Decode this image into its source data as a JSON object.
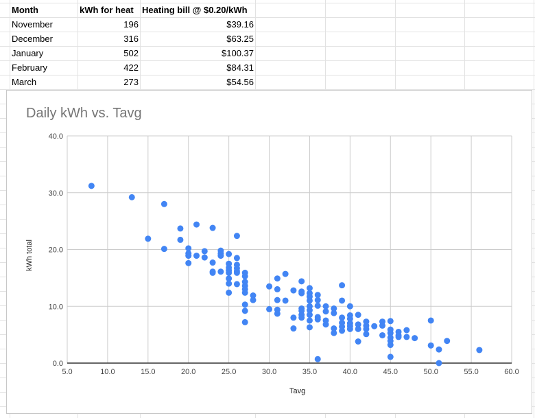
{
  "sheet": {
    "headers": [
      "Month",
      "kWh for heat",
      "Heating bill @ $0.20/kWh"
    ],
    "rows": [
      [
        "November",
        "196",
        "$39.16"
      ],
      [
        "December",
        "316",
        "$63.25"
      ],
      [
        "January",
        "502",
        "$100.37"
      ],
      [
        "February",
        "422",
        "$84.31"
      ],
      [
        "March",
        "273",
        "$54.56"
      ]
    ]
  },
  "chart_data": {
    "type": "scatter",
    "title": "Daily kWh vs. Tavg",
    "xlabel": "Tavg",
    "ylabel": "kWh total",
    "xlim": [
      5,
      60
    ],
    "ylim": [
      0,
      40
    ],
    "xticks": [
      "5.0",
      "10.0",
      "15.0",
      "20.0",
      "25.0",
      "30.0",
      "35.0",
      "40.0",
      "45.0",
      "50.0",
      "55.0",
      "60.0"
    ],
    "yticks": [
      "0.0",
      "10.0",
      "20.0",
      "30.0",
      "40.0"
    ],
    "grid": true,
    "color": "#4285f4",
    "points": [
      [
        8,
        31.2
      ],
      [
        13,
        29.2
      ],
      [
        15,
        21.9
      ],
      [
        17,
        28
      ],
      [
        17,
        20.1
      ],
      [
        19,
        23.7
      ],
      [
        19,
        21.7
      ],
      [
        20,
        20.2
      ],
      [
        20,
        19.3
      ],
      [
        20,
        18.9
      ],
      [
        20,
        17.6
      ],
      [
        21,
        24.4
      ],
      [
        21,
        18.9
      ],
      [
        22,
        19.7
      ],
      [
        22,
        18.6
      ],
      [
        23,
        23.8
      ],
      [
        23,
        17.7
      ],
      [
        23,
        16.1
      ],
      [
        23,
        15.9
      ],
      [
        24,
        19.8
      ],
      [
        24,
        19.3
      ],
      [
        24,
        18.9
      ],
      [
        24,
        16.1
      ],
      [
        25,
        19.2
      ],
      [
        25,
        17.5
      ],
      [
        25,
        16.8
      ],
      [
        25,
        16.3
      ],
      [
        25,
        15.9
      ],
      [
        25,
        14.9
      ],
      [
        25,
        14
      ],
      [
        25,
        12.4
      ],
      [
        26,
        22.4
      ],
      [
        26,
        18.5
      ],
      [
        26,
        17.3
      ],
      [
        26,
        16.7
      ],
      [
        26,
        16.2
      ],
      [
        26,
        15.9
      ],
      [
        26,
        13.9
      ],
      [
        27,
        15.9
      ],
      [
        27,
        15.3
      ],
      [
        27,
        14.3
      ],
      [
        27,
        13.6
      ],
      [
        27,
        13
      ],
      [
        27,
        12.4
      ],
      [
        27,
        10.3
      ],
      [
        27,
        9.2
      ],
      [
        27,
        7.2
      ],
      [
        28,
        11.9
      ],
      [
        28,
        11.1
      ],
      [
        30,
        13.5
      ],
      [
        30,
        9.5
      ],
      [
        31,
        14.9
      ],
      [
        31,
        13
      ],
      [
        31,
        11.1
      ],
      [
        31,
        9.4
      ],
      [
        31,
        8.7
      ],
      [
        32,
        15.7
      ],
      [
        32,
        11
      ],
      [
        33,
        12.8
      ],
      [
        33,
        8
      ],
      [
        33,
        6.1
      ],
      [
        34,
        14.4
      ],
      [
        34,
        12.6
      ],
      [
        34,
        12.3
      ],
      [
        34,
        9.6
      ],
      [
        34,
        9.2
      ],
      [
        34,
        8.5
      ],
      [
        34,
        8
      ],
      [
        35,
        13.2
      ],
      [
        35,
        12.3
      ],
      [
        35,
        11.7
      ],
      [
        35,
        11
      ],
      [
        35,
        10
      ],
      [
        35,
        9.3
      ],
      [
        35,
        8.5
      ],
      [
        35,
        7.5
      ],
      [
        35,
        6.3
      ],
      [
        36,
        12
      ],
      [
        36,
        11.1
      ],
      [
        36,
        10.1
      ],
      [
        36,
        8.1
      ],
      [
        36,
        7.7
      ],
      [
        36,
        0.7
      ],
      [
        37,
        10
      ],
      [
        37,
        9.1
      ],
      [
        37,
        7.5
      ],
      [
        37,
        6.8
      ],
      [
        38,
        9.6
      ],
      [
        38,
        8.8
      ],
      [
        38,
        6.1
      ],
      [
        38,
        5.3
      ],
      [
        39,
        13.7
      ],
      [
        39,
        11
      ],
      [
        39,
        8
      ],
      [
        39,
        7.1
      ],
      [
        39,
        6.4
      ],
      [
        39,
        5.7
      ],
      [
        40,
        10
      ],
      [
        40,
        8.4
      ],
      [
        40,
        7.8
      ],
      [
        40,
        7
      ],
      [
        40,
        6.5
      ],
      [
        40,
        6
      ],
      [
        41,
        8.5
      ],
      [
        41,
        6.8
      ],
      [
        41,
        6
      ],
      [
        41,
        3.8
      ],
      [
        42,
        7.3
      ],
      [
        42,
        6.6
      ],
      [
        42,
        6
      ],
      [
        42,
        5.1
      ],
      [
        43,
        6.5
      ],
      [
        44,
        7.3
      ],
      [
        44,
        6.6
      ],
      [
        44,
        4.9
      ],
      [
        45,
        7.4
      ],
      [
        45,
        5.9
      ],
      [
        45,
        5.3
      ],
      [
        45,
        4.5
      ],
      [
        45,
        3.9
      ],
      [
        45,
        3.2
      ],
      [
        45,
        1.1
      ],
      [
        46,
        5.5
      ],
      [
        46,
        4.9
      ],
      [
        46,
        4.6
      ],
      [
        47,
        5.8
      ],
      [
        47,
        4.6
      ],
      [
        48,
        4.4
      ],
      [
        50,
        7.5
      ],
      [
        50,
        3.1
      ],
      [
        51,
        2.4
      ],
      [
        51,
        0
      ],
      [
        52,
        3.9
      ],
      [
        56,
        2.3
      ]
    ]
  }
}
